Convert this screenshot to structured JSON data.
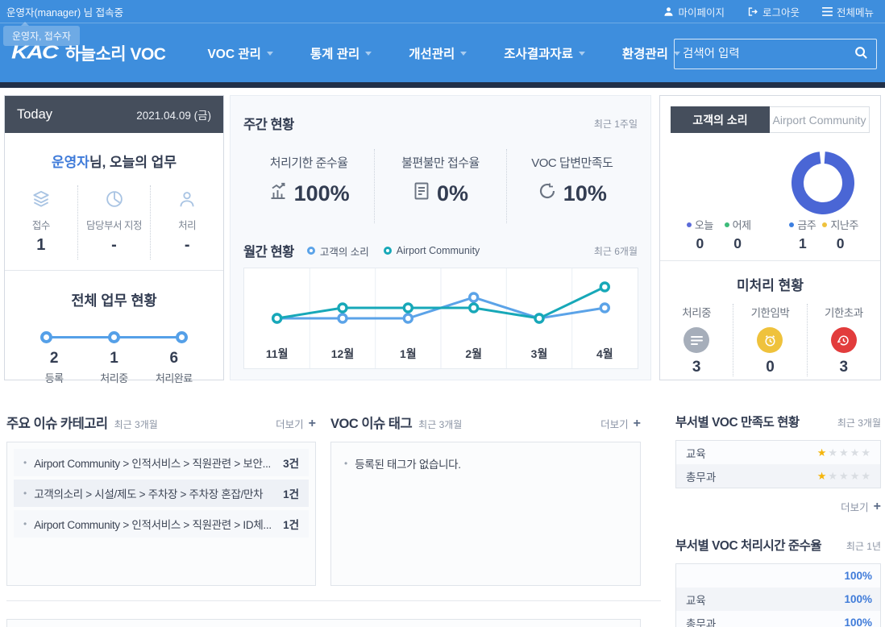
{
  "colors": {
    "header_blue": "#3e8edd",
    "dark_strip": "#213048",
    "panel_dark": "#454e5c",
    "accent_blue": "#3f7bd9",
    "star_filled": "#f5b50c",
    "star_empty": "#d9dde2"
  },
  "icons": {
    "plus": "+",
    "bullet": "•",
    "star": "★"
  },
  "topbar": {
    "user_status": "운영자(manager) 님 접속중",
    "role_tooltip": "운영자, 접수자",
    "links": [
      {
        "label": "마이페이지"
      },
      {
        "label": "로그아웃"
      },
      {
        "label": "전체메뉴"
      }
    ]
  },
  "header": {
    "logo_kac": "KAC",
    "logo_title": "하늘소리 VOC",
    "nav": [
      "VOC 관리",
      "통계 관리",
      "개선관리",
      "조사결과자료",
      "환경관리"
    ],
    "search_placeholder": "검색어 입력"
  },
  "today": {
    "title": "Today",
    "date": "2021.04.09 (금)",
    "greeting_name": "운영자",
    "greeting_suffix": "님, 오늘의 업무",
    "tasks": [
      {
        "label": "접수",
        "value": "1"
      },
      {
        "label": "담당부서 지정",
        "value": "-"
      },
      {
        "label": "처리",
        "value": "-"
      }
    ],
    "overall": {
      "title": "전체 업무 현황",
      "steps": [
        {
          "value": "2",
          "label": "등록"
        },
        {
          "value": "1",
          "label": "처리중"
        },
        {
          "value": "6",
          "label": "처리완료"
        }
      ]
    }
  },
  "weekly": {
    "title": "주간 현황",
    "period": "최근 1주일",
    "metrics": [
      {
        "label": "처리기한 준수율",
        "value": "100%"
      },
      {
        "label": "불편불만 접수율",
        "value": "0%"
      },
      {
        "label": "VOC 답변만족도",
        "value": "10%"
      }
    ]
  },
  "monthly": {
    "title": "월간 현황",
    "period": "최근 6개월"
  },
  "voice": {
    "tabs": [
      {
        "label": "고객의 소리",
        "active": true
      },
      {
        "label": "Airport Community",
        "active": false
      }
    ],
    "stats": [
      {
        "label": "오늘",
        "value": "0",
        "color": "#5b6bd8"
      },
      {
        "label": "어제",
        "value": "0",
        "color": "#3dbb7a"
      },
      {
        "label": "금주",
        "value": "1",
        "color": "#3d7fe0"
      },
      {
        "label": "지난주",
        "value": "0",
        "color": "#efc23d"
      }
    ]
  },
  "pending": {
    "title": "미처리 현황",
    "items": [
      {
        "label": "처리중",
        "value": "3",
        "color": "#a6aeba"
      },
      {
        "label": "기한임박",
        "value": "0",
        "color": "#efc23c"
      },
      {
        "label": "기한초과",
        "value": "3",
        "color": "#e23c3c"
      }
    ]
  },
  "issues": {
    "title": "주요 이슈 카테고리",
    "period": "최근 3개월",
    "more": "더보기",
    "rows": [
      {
        "text": "Airport Community > 인적서비스 > 직원관련 > 보안...",
        "count": "3건"
      },
      {
        "text": "고객의소리 > 시설/제도 > 주차장 > 주차장 혼잡/만차",
        "count": "1건"
      },
      {
        "text": "Airport Community > 인적서비스 > 직원관련 > ID체...",
        "count": "1건"
      }
    ]
  },
  "tags": {
    "title": "VOC 이슈 태그",
    "period": "최근 3개월",
    "more": "더보기",
    "empty_message": "등록된 태그가 없습니다."
  },
  "satisfaction": {
    "title": "부서별 VOC 만족도 현황",
    "period": "최근 3개월",
    "more": "더보기",
    "rows": [
      {
        "dept": "교육",
        "stars": 1,
        "max": 5
      },
      {
        "dept": "총무과",
        "stars": 1,
        "max": 5
      }
    ]
  },
  "compliance": {
    "title": "부서별 VOC 처리시간 준수율",
    "period": "최근 1년",
    "rows": [
      {
        "dept": "",
        "value": "100%"
      },
      {
        "dept": "교육",
        "value": "100%"
      },
      {
        "dept": "총무과",
        "value": "100%"
      }
    ]
  },
  "chart_data": [
    {
      "id": "monthly-line",
      "type": "line",
      "title": "월간 현황",
      "categories": [
        "11월",
        "12월",
        "1월",
        "2월",
        "3월",
        "4월"
      ],
      "series": [
        {
          "name": "고객의 소리",
          "color": "#5ba3e8",
          "values": [
            0,
            0,
            0,
            2,
            0,
            1
          ]
        },
        {
          "name": "Airport Community",
          "color": "#17a8b8",
          "values": [
            0,
            1,
            1,
            1,
            0,
            3
          ]
        }
      ],
      "ylim": [
        0,
        4
      ],
      "grid": "vertical-only",
      "legend_position": "top"
    },
    {
      "id": "voice-donut",
      "type": "donut",
      "color": "#4a66d5",
      "slices": [
        {
          "name": "금주",
          "value": 1
        }
      ],
      "note": "full ring with small gap at top"
    }
  ]
}
